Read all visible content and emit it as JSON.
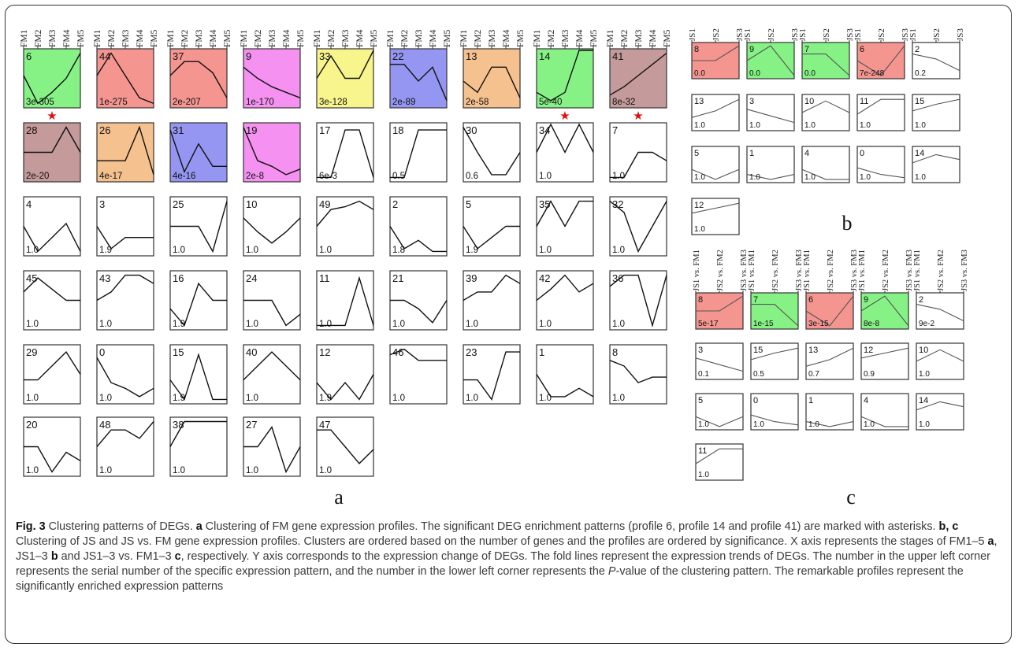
{
  "panels": {
    "a": {
      "label": "a",
      "x_labels": [
        "FM1",
        "FM2",
        "FM3",
        "FM4",
        "FM5"
      ],
      "profiles": [
        {
          "id": "6",
          "p": "3e-305",
          "color": "#86f286",
          "trend": [
            0.1,
            -0.9,
            -0.5,
            0.0,
            0.9
          ],
          "marked": true
        },
        {
          "id": "44",
          "p": "1e-275",
          "color": "#f49590",
          "trend": [
            0.1,
            0.9,
            0.1,
            -0.7,
            -0.9
          ],
          "marked": false
        },
        {
          "id": "37",
          "p": "2e-207",
          "color": "#f49590",
          "trend": [
            0.1,
            0.6,
            0.6,
            0.2,
            -0.7
          ],
          "marked": false
        },
        {
          "id": "9",
          "p": "1e-170",
          "color": "#f591f0",
          "trend": [
            0.4,
            0.0,
            -0.3,
            -0.5,
            -0.7
          ],
          "marked": false
        },
        {
          "id": "33",
          "p": "3e-128",
          "color": "#f7f58c",
          "trend": [
            0.0,
            0.8,
            0.0,
            0.0,
            1.0
          ],
          "marked": false
        },
        {
          "id": "22",
          "p": "2e-89",
          "color": "#9596f2",
          "trend": [
            0.5,
            0.5,
            -0.1,
            0.4,
            -0.8
          ],
          "marked": false
        },
        {
          "id": "13",
          "p": "2e-58",
          "color": "#f5c18f",
          "trend": [
            -0.1,
            -0.5,
            0.4,
            0.4,
            -0.7
          ],
          "marked": false
        },
        {
          "id": "14",
          "p": "5e-40",
          "color": "#86f286",
          "trend": [
            -0.5,
            -0.8,
            -0.5,
            1.0,
            1.0
          ],
          "marked": true
        },
        {
          "id": "41",
          "p": "8e-32",
          "color": "#c49a9a",
          "trend": [
            -0.6,
            -0.3,
            0.1,
            0.5,
            0.9
          ],
          "marked": true
        },
        {
          "id": "28",
          "p": "2e-20",
          "color": "#c49a9a",
          "trend": [
            0.0,
            0.0,
            0.0,
            0.9,
            0.0
          ],
          "marked": false
        },
        {
          "id": "26",
          "p": "4e-17",
          "color": "#f5c18f",
          "trend": [
            -0.3,
            -0.3,
            -0.3,
            0.9,
            -0.8
          ],
          "marked": false
        },
        {
          "id": "31",
          "p": "4e-16",
          "color": "#9596f2",
          "trend": [
            0.8,
            -0.7,
            0.3,
            -0.5,
            -0.5
          ],
          "marked": false
        },
        {
          "id": "19",
          "p": "2e-8",
          "color": "#f591f0",
          "trend": [
            0.9,
            -0.3,
            -0.5,
            -0.8,
            -0.6
          ],
          "marked": false
        },
        {
          "id": "17",
          "p": "6e-3",
          "color": "",
          "trend": [
            -0.9,
            -0.9,
            0.8,
            0.8,
            -0.9
          ],
          "marked": false
        },
        {
          "id": "18",
          "p": "0.5",
          "color": "",
          "trend": [
            -0.9,
            -0.9,
            0.8,
            0.8,
            0.8
          ],
          "marked": false
        },
        {
          "id": "30",
          "p": "0.6",
          "color": "",
          "trend": [
            0.9,
            0.0,
            -0.8,
            -0.8,
            0.0
          ],
          "marked": false
        },
        {
          "id": "34",
          "p": "1.0",
          "color": "",
          "trend": [
            0.0,
            1.0,
            0.0,
            1.0,
            0.0
          ],
          "marked": false
        },
        {
          "id": "7",
          "p": "1.0",
          "color": "",
          "trend": [
            -0.9,
            -0.9,
            0.0,
            0.0,
            -0.3
          ],
          "marked": false
        },
        {
          "id": "4",
          "p": "1.0",
          "color": "",
          "trend": [
            0.0,
            -0.9,
            -0.4,
            0.1,
            -0.9
          ],
          "marked": false
        },
        {
          "id": "3",
          "p": "1.9",
          "color": "",
          "trend": [
            0.0,
            -0.8,
            -0.4,
            -0.4,
            -0.4
          ],
          "marked": false
        },
        {
          "id": "25",
          "p": "1.0",
          "color": "",
          "trend": [
            0.0,
            0.0,
            0.0,
            -0.9,
            0.9
          ],
          "marked": false
        },
        {
          "id": "10",
          "p": "1.0",
          "color": "",
          "trend": [
            0.3,
            -0.2,
            -0.6,
            -0.2,
            0.3
          ],
          "marked": false
        },
        {
          "id": "49",
          "p": "1.0",
          "color": "",
          "trend": [
            0.0,
            0.6,
            0.7,
            0.9,
            0.6
          ],
          "marked": false
        },
        {
          "id": "2",
          "p": "1.8",
          "color": "",
          "trend": [
            0.0,
            -0.8,
            -0.5,
            -0.9,
            -0.9
          ],
          "marked": false
        },
        {
          "id": "5",
          "p": "1.9",
          "color": "",
          "trend": [
            0.0,
            -0.8,
            -0.4,
            0.0,
            0.0
          ],
          "marked": false
        },
        {
          "id": "35",
          "p": "1.0",
          "color": "",
          "trend": [
            0.0,
            0.9,
            0.0,
            0.9,
            0.9
          ],
          "marked": false
        },
        {
          "id": "32",
          "p": "1.0",
          "color": "",
          "trend": [
            0.9,
            0.5,
            -0.9,
            0.0,
            0.9
          ],
          "marked": false
        },
        {
          "id": "45",
          "p": "1.0",
          "color": "",
          "trend": [
            0.3,
            0.8,
            0.4,
            0.0,
            0.0
          ],
          "marked": false
        },
        {
          "id": "43",
          "p": "1.0",
          "color": "",
          "trend": [
            0.0,
            0.3,
            0.9,
            0.9,
            0.6
          ],
          "marked": false
        },
        {
          "id": "16",
          "p": "1.9",
          "color": "",
          "trend": [
            -0.3,
            -0.9,
            0.6,
            0.0,
            0.0
          ],
          "marked": false
        },
        {
          "id": "24",
          "p": "1.0",
          "color": "",
          "trend": [
            0.0,
            0.0,
            0.0,
            -0.9,
            -0.5
          ],
          "marked": false
        },
        {
          "id": "11",
          "p": "1.0",
          "color": "",
          "trend": [
            -0.9,
            -0.9,
            -0.9,
            0.8,
            -0.9
          ],
          "marked": false
        },
        {
          "id": "21",
          "p": "1.0",
          "color": "",
          "trend": [
            0.0,
            0.0,
            -0.3,
            -0.8,
            0.0
          ],
          "marked": false
        },
        {
          "id": "39",
          "p": "1.0",
          "color": "",
          "trend": [
            0.0,
            0.3,
            0.3,
            0.9,
            0.6
          ],
          "marked": false
        },
        {
          "id": "42",
          "p": "1.0",
          "color": "",
          "trend": [
            0.0,
            0.4,
            0.9,
            0.3,
            0.6
          ],
          "marked": false
        },
        {
          "id": "36",
          "p": "1.0",
          "color": "",
          "trend": [
            0.5,
            0.9,
            0.9,
            -0.9,
            0.9
          ],
          "marked": false
        },
        {
          "id": "29",
          "p": "1.0",
          "color": "",
          "trend": [
            -0.2,
            -0.2,
            0.3,
            0.8,
            0.0
          ],
          "marked": false
        },
        {
          "id": "0",
          "p": "1.0",
          "color": "",
          "trend": [
            0.6,
            -0.3,
            -0.5,
            -0.8,
            -0.5
          ],
          "marked": false
        },
        {
          "id": "15",
          "p": "1.9",
          "color": "",
          "trend": [
            -0.2,
            -0.9,
            0.7,
            -0.9,
            -0.9
          ],
          "marked": false
        },
        {
          "id": "40",
          "p": "1.0",
          "color": "",
          "trend": [
            -0.2,
            0.3,
            0.8,
            0.3,
            -0.2
          ],
          "marked": false
        },
        {
          "id": "12",
          "p": "1.9",
          "color": "",
          "trend": [
            -0.3,
            -0.9,
            -0.3,
            -0.9,
            0.0
          ],
          "marked": false
        },
        {
          "id": "46",
          "p": "1.0",
          "color": "",
          "trend": [
            0.7,
            0.9,
            0.5,
            0.5,
            0.5
          ],
          "marked": false
        },
        {
          "id": "23",
          "p": "1.0",
          "color": "",
          "trend": [
            -0.2,
            -0.2,
            -0.9,
            0.8,
            0.8
          ],
          "marked": false
        },
        {
          "id": "1",
          "p": "1.0",
          "color": "",
          "trend": [
            0.0,
            -0.8,
            -0.8,
            -0.5,
            -0.8
          ],
          "marked": false
        },
        {
          "id": "8",
          "p": "1.0",
          "color": "",
          "trend": [
            0.5,
            0.3,
            -0.3,
            -0.1,
            -0.1
          ],
          "marked": false
        },
        {
          "id": "20",
          "p": "1.0",
          "color": "",
          "trend": [
            0.0,
            0.0,
            -0.9,
            -0.2,
            -0.5
          ],
          "marked": false
        },
        {
          "id": "48",
          "p": "1.0",
          "color": "",
          "trend": [
            0.0,
            0.6,
            0.6,
            0.3,
            0.9
          ],
          "marked": false
        },
        {
          "id": "38",
          "p": "1.0",
          "color": "",
          "trend": [
            0.0,
            0.9,
            0.9,
            0.9,
            0.9
          ],
          "marked": false
        },
        {
          "id": "27",
          "p": "1.0",
          "color": "",
          "trend": [
            0.0,
            0.0,
            0.7,
            -0.9,
            0.0
          ],
          "marked": false
        },
        {
          "id": "47",
          "p": "1.0",
          "color": "",
          "trend": [
            0.6,
            0.6,
            0.0,
            -0.6,
            -0.1
          ],
          "marked": false
        }
      ]
    },
    "b": {
      "label": "b",
      "x_labels": [
        "JS1",
        "JS2",
        "JS3"
      ],
      "profiles": [
        {
          "id": "8",
          "p": "0.0",
          "color": "#f49590",
          "trend": [
            0.0,
            0.0,
            0.9
          ]
        },
        {
          "id": "9",
          "p": "0.0",
          "color": "#86f286",
          "trend": [
            0.0,
            0.9,
            -0.9
          ]
        },
        {
          "id": "7",
          "p": "0.0",
          "color": "#86f286",
          "trend": [
            0.4,
            0.4,
            -0.9
          ]
        },
        {
          "id": "6",
          "p": "7e-248",
          "color": "#f49590",
          "trend": [
            0.0,
            -0.9,
            0.9
          ]
        },
        {
          "id": "2",
          "p": "0.2",
          "color": "",
          "trend": [
            0.4,
            0.1,
            -0.6
          ]
        },
        {
          "id": "13",
          "p": "1.0",
          "color": "",
          "trend": [
            -0.3,
            0.1,
            0.8
          ]
        },
        {
          "id": "3",
          "p": "1.0",
          "color": "",
          "trend": [
            0.2,
            -0.2,
            -0.6
          ]
        },
        {
          "id": "10",
          "p": "1.0",
          "color": "",
          "trend": [
            0.0,
            0.7,
            0.0
          ]
        },
        {
          "id": "11",
          "p": "1.0",
          "color": "",
          "trend": [
            -0.1,
            0.8,
            0.8
          ]
        },
        {
          "id": "15",
          "p": "1.0",
          "color": "",
          "trend": [
            0.1,
            0.5,
            0.8
          ]
        },
        {
          "id": "5",
          "p": "1.0",
          "color": "",
          "trend": [
            -0.3,
            -0.9,
            -0.3
          ]
        },
        {
          "id": "1",
          "p": "1.0",
          "color": "",
          "trend": [
            -0.6,
            -0.9,
            -0.6
          ]
        },
        {
          "id": "4",
          "p": "1.0",
          "color": "",
          "trend": [
            -0.3,
            -0.9,
            -0.9
          ]
        },
        {
          "id": "0",
          "p": "1.0",
          "color": "",
          "trend": [
            -0.2,
            -0.6,
            -0.8
          ]
        },
        {
          "id": "14",
          "p": "1.0",
          "color": "",
          "trend": [
            0.1,
            0.6,
            0.3
          ]
        },
        {
          "id": "12",
          "p": "1.0",
          "color": "",
          "trend": [
            0.2,
            0.5,
            0.8
          ]
        }
      ]
    },
    "c": {
      "label": "c",
      "x_labels": [
        "JS1 vs. FM1",
        "JS2 vs. FM2",
        "JS3 vs. FM3"
      ],
      "profiles": [
        {
          "id": "8",
          "p": "5e-17",
          "color": "#f49590",
          "trend": [
            0.0,
            0.0,
            0.9
          ]
        },
        {
          "id": "7",
          "p": "1e-15",
          "color": "#86f286",
          "trend": [
            0.4,
            0.4,
            -0.9
          ]
        },
        {
          "id": "6",
          "p": "3e-15",
          "color": "#f49590",
          "trend": [
            0.0,
            -0.9,
            0.9
          ]
        },
        {
          "id": "9",
          "p": "8e-8",
          "color": "#86f286",
          "trend": [
            0.0,
            0.9,
            -0.9
          ]
        },
        {
          "id": "2",
          "p": "9e-2",
          "color": "",
          "trend": [
            0.4,
            0.1,
            -0.6
          ]
        },
        {
          "id": "3",
          "p": "0.1",
          "color": "",
          "trend": [
            0.2,
            -0.2,
            -0.6
          ]
        },
        {
          "id": "15",
          "p": "0.5",
          "color": "",
          "trend": [
            0.1,
            0.5,
            0.8
          ]
        },
        {
          "id": "13",
          "p": "0.7",
          "color": "",
          "trend": [
            -0.3,
            0.1,
            0.8
          ]
        },
        {
          "id": "12",
          "p": "0.9",
          "color": "",
          "trend": [
            0.2,
            0.5,
            0.8
          ]
        },
        {
          "id": "10",
          "p": "1.0",
          "color": "",
          "trend": [
            0.0,
            0.7,
            0.0
          ]
        },
        {
          "id": "5",
          "p": "1.0",
          "color": "",
          "trend": [
            -0.3,
            -0.9,
            -0.3
          ]
        },
        {
          "id": "0",
          "p": "1.0",
          "color": "",
          "trend": [
            -0.2,
            -0.6,
            -0.8
          ]
        },
        {
          "id": "1",
          "p": "1.0",
          "color": "",
          "trend": [
            -0.6,
            -0.9,
            -0.6
          ]
        },
        {
          "id": "4",
          "p": "1.0",
          "color": "",
          "trend": [
            -0.3,
            -0.9,
            -0.9
          ]
        },
        {
          "id": "14",
          "p": "1.0",
          "color": "",
          "trend": [
            0.1,
            0.6,
            0.3
          ]
        },
        {
          "id": "11",
          "p": "1.0",
          "color": "",
          "trend": [
            -0.1,
            0.8,
            0.8
          ]
        }
      ]
    }
  },
  "caption": {
    "fig_label": "Fig. 3",
    "title": " Clustering patterns of DEGs. ",
    "a_letter": "a",
    "a_text": " Clustering of FM gene expression profiles. The significant DEG enrichment patterns (profile 6, profile 14 and profile 41) are marked with asterisks. ",
    "bc_letter": "b, c",
    "bc_text": " Clustering of JS and JS vs. FM gene expression profiles. Clusters are ordered based on the number of genes and the profiles are ordered by significance. X axis represents the stages of FM1–5 ",
    "a_letter2": "a",
    "mid1": ", JS1–3 ",
    "b_letter": "b",
    "mid2": " and JS1–3 vs. FM1–3 ",
    "c_letter": "c",
    "rest": ", respectively. Y axis corresponds to the expression change of DEGs. The fold lines represent the expression trends of DEGs. The number in the upper left corner represents the serial number of the specific expression pattern, and the number in the lower left corner represents the ",
    "p_italic": "P",
    "rest2": "-value of the clustering pattern. The remarkable profiles represent the significantly enriched expression patterns"
  }
}
